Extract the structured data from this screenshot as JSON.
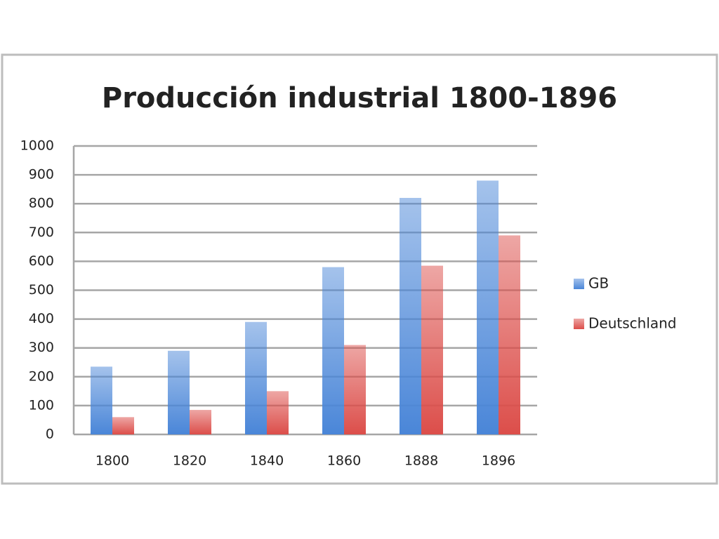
{
  "chart_data": {
    "type": "bar",
    "title": "Producción industrial 1800-1896",
    "categories": [
      "1800",
      "1820",
      "1840",
      "1860",
      "1888",
      "1896"
    ],
    "series": [
      {
        "name": "GB",
        "color": "#4a86d8",
        "values": [
          235,
          290,
          390,
          580,
          820,
          880
        ]
      },
      {
        "name": "Deutschland",
        "color": "#dc4e4a",
        "values": [
          60,
          85,
          150,
          310,
          585,
          690
        ]
      }
    ],
    "ylim": [
      0,
      1000
    ],
    "yticks": [
      0,
      100,
      200,
      300,
      400,
      500,
      600,
      700,
      800,
      900,
      1000
    ],
    "grid": true,
    "legend": "right"
  }
}
